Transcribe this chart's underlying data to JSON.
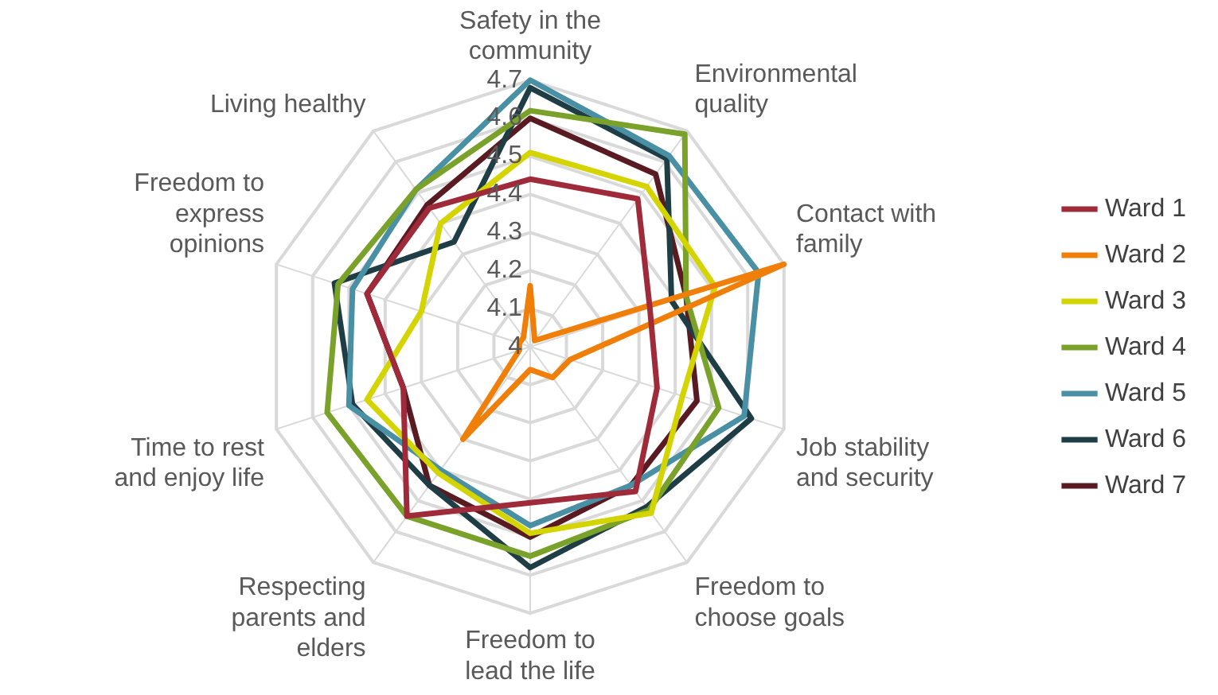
{
  "chart_data": {
    "type": "radar",
    "categories": [
      "Safety in the\ncommunity",
      "Environmental\nquality",
      "Contact with\nfamily",
      "Job stability\nand security",
      "Freedom to\nchoose goals",
      "Freedom to\nlead the life",
      "Respecting\nparents and\nelders",
      "Time to rest\nand enjoy life",
      "Freedom to\nexpress\nopinions",
      "Living healthy"
    ],
    "series": [
      {
        "name": "Ward 1",
        "color": "#9e2a3a",
        "values": [
          4.44,
          4.48,
          4.33,
          4.35,
          4.47,
          4.41,
          4.55,
          4.35,
          4.45,
          4.45
        ]
      },
      {
        "name": "Ward 2",
        "color": "#f07f09",
        "values": [
          4.16,
          4.02,
          4.7,
          4.11,
          4.1,
          4.06,
          4.3,
          4.03,
          4.03,
          4.03
        ]
      },
      {
        "name": "Ward 3",
        "color": "#d4d400",
        "values": [
          4.51,
          4.52,
          4.51,
          4.42,
          4.54,
          4.49,
          4.41,
          4.45,
          4.3,
          4.4
        ]
      },
      {
        "name": "Ward 4",
        "color": "#7aa22a",
        "values": [
          4.62,
          4.69,
          4.43,
          4.52,
          4.53,
          4.55,
          4.55,
          4.56,
          4.53,
          4.51
        ]
      },
      {
        "name": "Ward 5",
        "color": "#4a90a4",
        "values": [
          4.7,
          4.62,
          4.63,
          4.59,
          4.45,
          4.47,
          4.4,
          4.5,
          4.49,
          4.51
        ]
      },
      {
        "name": "Ward 6",
        "color": "#1e3d45",
        "values": [
          4.68,
          4.61,
          4.39,
          4.61,
          4.52,
          4.58,
          4.45,
          4.49,
          4.54,
          4.34
        ]
      },
      {
        "name": "Ward 7",
        "color": "#5a1a22",
        "values": [
          4.6,
          4.56,
          4.43,
          4.46,
          4.45,
          4.5,
          4.45,
          4.35,
          4.45,
          4.46
        ]
      }
    ],
    "ylim": [
      4,
      4.7
    ],
    "yticks": [
      4,
      4.1,
      4.2,
      4.3,
      4.4,
      4.5,
      4.6,
      4.7
    ],
    "grid": true,
    "legend": "right",
    "marker": "none",
    "line_style": "solid"
  }
}
